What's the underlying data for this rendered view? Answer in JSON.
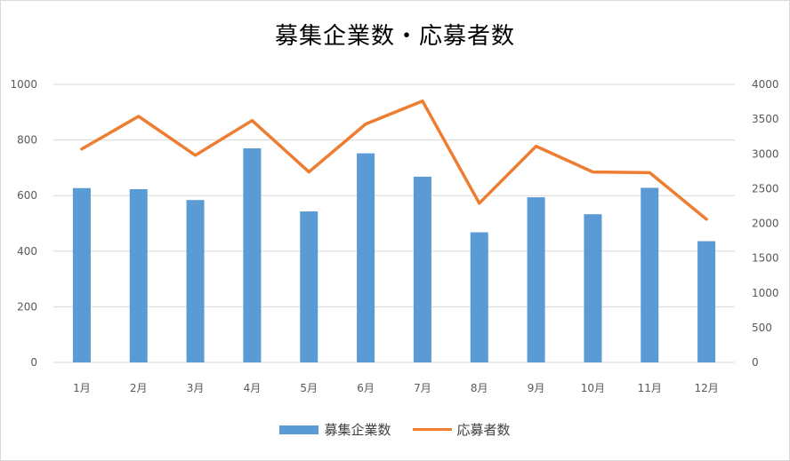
{
  "chart_data": {
    "type": "bar",
    "title": "募集企業数・応募者数",
    "categories": [
      "1月",
      "2月",
      "3月",
      "4月",
      "5月",
      "6月",
      "7月",
      "8月",
      "9月",
      "10月",
      "11月",
      "12月"
    ],
    "series": [
      {
        "name": "募集企業数",
        "type": "bar",
        "axis": "left",
        "color": "#5b9bd5",
        "values": [
          627,
          623,
          584,
          770,
          543,
          752,
          668,
          468,
          594,
          533,
          628,
          436
        ]
      },
      {
        "name": "応募者数",
        "type": "line",
        "axis": "right",
        "color": "#ed7d31",
        "values": [
          3070,
          3540,
          2980,
          3480,
          2740,
          3430,
          3760,
          2290,
          3110,
          2740,
          2730,
          2060
        ]
      }
    ],
    "y_left": {
      "min": 0,
      "max": 1000,
      "ticks": [
        "0",
        "200",
        "400",
        "600",
        "800",
        "1000"
      ]
    },
    "y_right": {
      "min": 0,
      "max": 4000,
      "ticks": [
        "0",
        "500",
        "1000",
        "1500",
        "2000",
        "2500",
        "3000",
        "3500",
        "4000"
      ]
    },
    "grid": true,
    "legend": "bottom"
  }
}
